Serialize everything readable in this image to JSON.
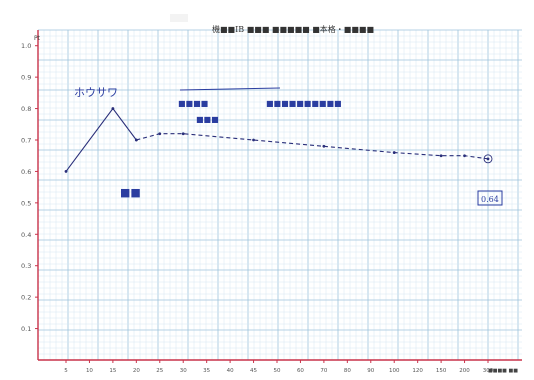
{
  "page": {
    "header_left": "■",
    "header_right": "機■■IB  ■■■ ■■■■■  ■本格・■■■■",
    "y_unit": "Pt",
    "corner_note": "■■■■ ■■"
  },
  "annotations": {
    "peak_note": "ホウサワ",
    "trough_note": "■■",
    "mid_note_1": "■■■■",
    "mid_note_2": "■■■",
    "mid_note_3": "■■■■■■■■■■",
    "end_note": "0.64"
  },
  "chart_data": {
    "type": "line",
    "title": "",
    "xlabel": "",
    "ylabel": "",
    "x_ticks": [
      "5",
      "10",
      "15",
      "20",
      "25",
      "30",
      "35",
      "40",
      "45",
      "50",
      "60",
      "70",
      "80",
      "90",
      "100",
      "120",
      "150",
      "200",
      "300"
    ],
    "y_ticks": [
      "0.1",
      "0.2",
      "0.3",
      "0.4",
      "0.5",
      "0.6",
      "0.7",
      "0.8",
      "0.9",
      "1.0"
    ],
    "ylim": [
      0.0,
      1.05
    ],
    "grid": true,
    "series": [
      {
        "line_style": "solid",
        "color": "#2a2f7a",
        "points": [
          {
            "x": "5",
            "y": 0.6
          },
          {
            "x": "15",
            "y": 0.8
          },
          {
            "x": "20",
            "y": 0.7
          }
        ]
      },
      {
        "line_style": "dashed",
        "color": "#2a2f7a",
        "points": [
          {
            "x": "20",
            "y": 0.7
          },
          {
            "x": "25",
            "y": 0.72
          },
          {
            "x": "30",
            "y": 0.72
          },
          {
            "x": "45",
            "y": 0.7
          },
          {
            "x": "70",
            "y": 0.68
          },
          {
            "x": "100",
            "y": 0.66
          },
          {
            "x": "150",
            "y": 0.65
          },
          {
            "x": "200",
            "y": 0.65
          },
          {
            "x": "300",
            "y": 0.64
          }
        ]
      }
    ],
    "colors": {
      "grid_major": "#9ec3dc",
      "grid_minor": "#d6e7f2",
      "axis": "#c8324a",
      "ink": "#2a2f7a"
    }
  }
}
